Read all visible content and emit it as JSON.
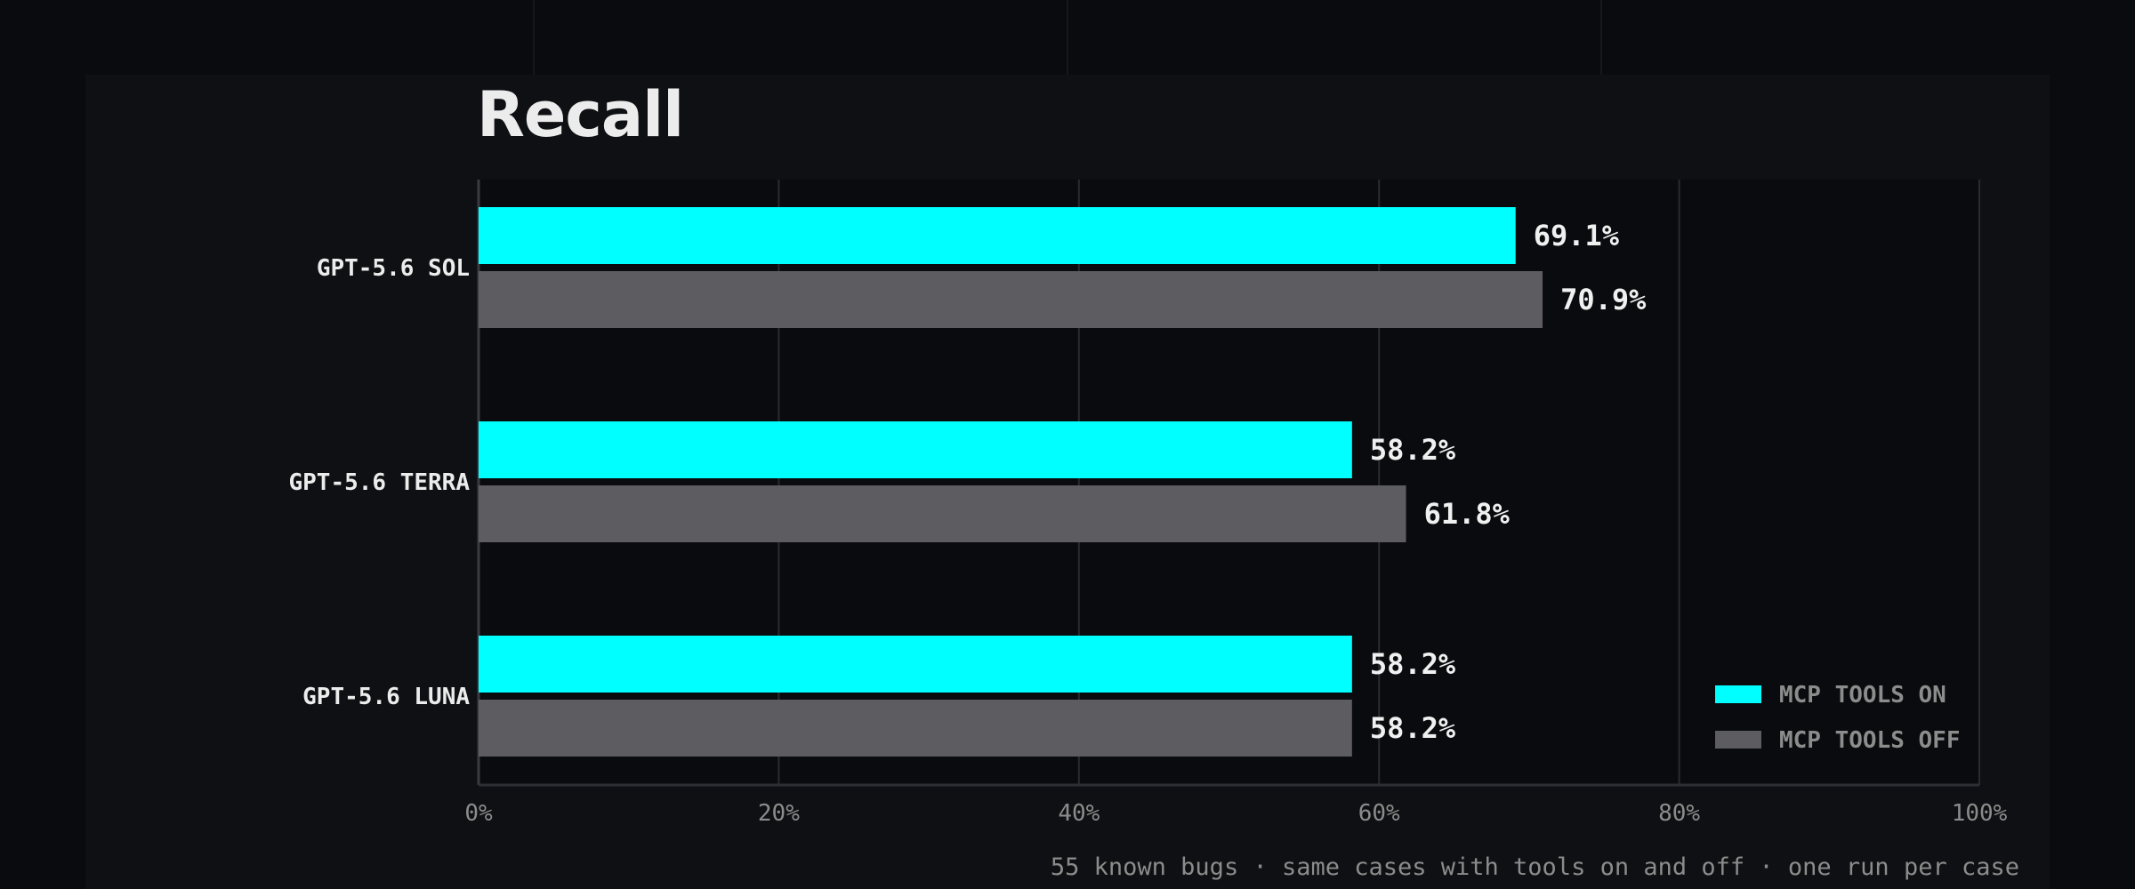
{
  "chart_data": {
    "type": "bar",
    "orientation": "horizontal",
    "title": "Recall",
    "categories": [
      "GPT-5.6 SOL",
      "GPT-5.6 TERRA",
      "GPT-5.6 LUNA"
    ],
    "series": [
      {
        "name": "MCP TOOLS ON",
        "values": [
          69.1,
          58.2,
          58.2
        ],
        "color": "#00ffff"
      },
      {
        "name": "MCP TOOLS OFF",
        "values": [
          70.9,
          61.8,
          58.2
        ],
        "color": "#5c5c61"
      }
    ],
    "value_labels": [
      [
        "69.1%",
        "58.2%",
        "58.2%"
      ],
      [
        "70.9%",
        "61.8%",
        "58.2%"
      ]
    ],
    "xlim": [
      0,
      100
    ],
    "x_ticks": [
      "0%",
      "20%",
      "40%",
      "60%",
      "80%",
      "100%"
    ],
    "grid": true,
    "legend_position": "bottom-right"
  },
  "footnote": "55 known bugs · same cases with tools on and off · one run per case"
}
